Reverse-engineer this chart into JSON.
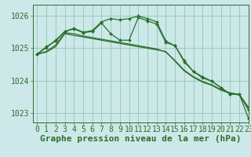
{
  "title": "Graphe pression niveau de la mer (hPa)",
  "bg_color": "#cce8e8",
  "grid_color": "#99ccbb",
  "line_color": "#2d6e2d",
  "marker_color": "#2d6e2d",
  "xlim": [
    -0.5,
    23
  ],
  "ylim": [
    1022.7,
    1026.35
  ],
  "yticks": [
    1023,
    1024,
    1025,
    1026
  ],
  "xticks": [
    0,
    1,
    2,
    3,
    4,
    5,
    6,
    7,
    8,
    9,
    10,
    11,
    12,
    13,
    14,
    15,
    16,
    17,
    18,
    19,
    20,
    21,
    22,
    23
  ],
  "series_plain": [
    [
      1024.82,
      1024.88,
      1025.05,
      1025.45,
      1025.4,
      1025.35,
      1025.3,
      1025.25,
      1025.2,
      1025.15,
      1025.1,
      1025.05,
      1025.0,
      1024.95,
      1024.9,
      1024.6,
      1024.3,
      1024.1,
      1023.95,
      1023.85,
      1023.7,
      1023.6,
      1023.55,
      1023.15
    ],
    [
      1024.82,
      1024.9,
      1025.1,
      1025.48,
      1025.45,
      1025.38,
      1025.33,
      1025.28,
      1025.23,
      1025.18,
      1025.13,
      1025.08,
      1025.03,
      1024.98,
      1024.88,
      1024.62,
      1024.32,
      1024.12,
      1023.97,
      1023.87,
      1023.72,
      1023.62,
      1023.57,
      1023.17
    ]
  ],
  "series_marker_low": [
    1024.82,
    1025.05,
    1025.22,
    1025.52,
    1025.6,
    1025.48,
    1025.52,
    1025.78,
    1025.45,
    1025.25,
    1025.25,
    1025.95,
    1025.85,
    1025.75,
    1025.18,
    1025.08,
    1024.58,
    1024.28,
    1024.08,
    1023.98,
    1023.78,
    1023.58,
    1023.58,
    1022.82
  ],
  "series_marker_high": [
    1024.82,
    1025.02,
    1025.25,
    1025.52,
    1025.62,
    1025.5,
    1025.55,
    1025.82,
    1025.92,
    1025.88,
    1025.92,
    1026.0,
    1025.92,
    1025.82,
    1025.22,
    1025.08,
    1024.62,
    1024.28,
    1024.12,
    1023.98,
    1023.78,
    1023.58,
    1023.58,
    1023.08
  ],
  "xlabel_fontsize": 8,
  "tick_fontsize": 7
}
